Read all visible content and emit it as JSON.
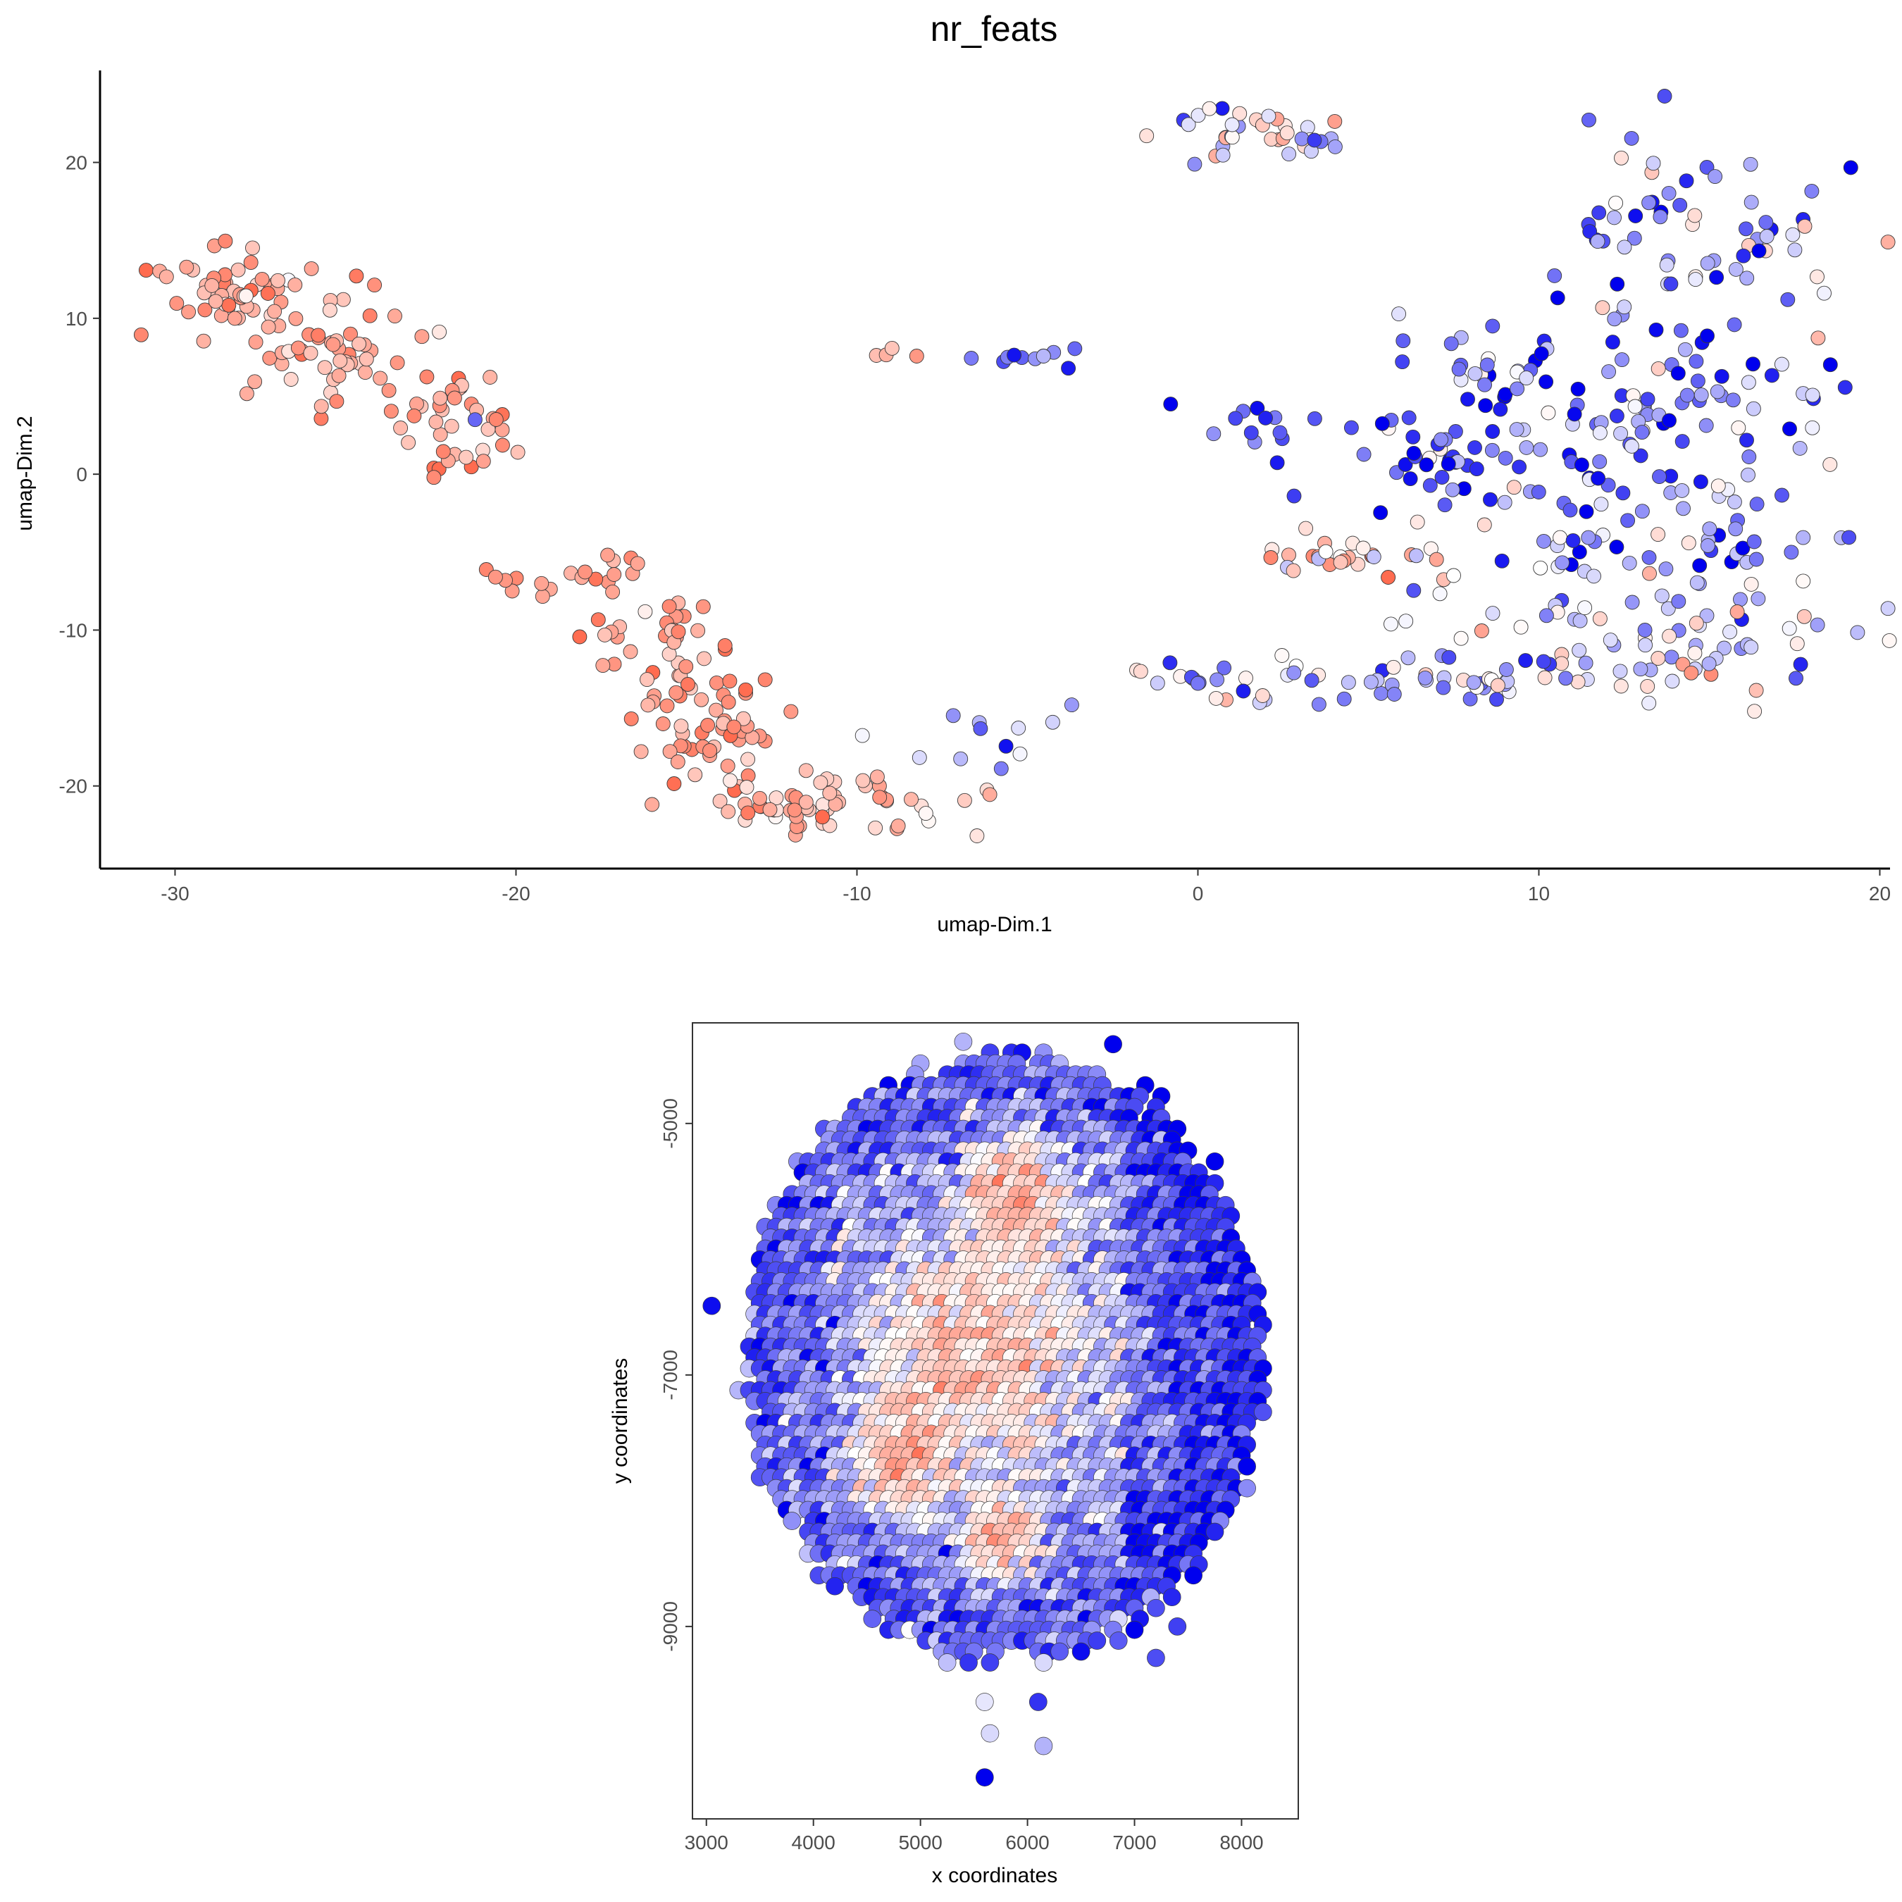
{
  "title": "nr_feats",
  "colors": {
    "low": "#ff6b4f",
    "mid": "#ffffff",
    "high": "#0000ee",
    "stroke": "#3a3a3a"
  },
  "chart_data": [
    {
      "type": "scatter",
      "name_of_panel": "umap",
      "xlabel": "umap-Dim.1",
      "ylabel": "umap-Dim.2",
      "xlim": [
        -32.2,
        20.3
      ],
      "ylim": [
        -25.3,
        25.9
      ],
      "xticks": [
        -30,
        -20,
        -10,
        0,
        10,
        20
      ],
      "yticks": [
        -20,
        -10,
        0,
        10,
        20
      ],
      "xticklabels": [
        "-30",
        "-20",
        "-10",
        "0",
        "10",
        "20"
      ],
      "yticklabels": [
        "-20",
        "-10",
        "0",
        "10",
        "20"
      ],
      "color_scale": "diverging: low = coral red, mid = white, high = blue",
      "clusters": [
        {
          "cx": -28.2,
          "cy": 12.0,
          "sx": 1.4,
          "sy": 1.4,
          "n": 55,
          "v": -0.6,
          "vs": 0.22
        },
        {
          "cx": -25.0,
          "cy": 8.0,
          "sx": 1.5,
          "sy": 1.5,
          "n": 50,
          "v": -0.55,
          "vs": 0.22
        },
        {
          "cx": -22.0,
          "cy": 3.5,
          "sx": 1.2,
          "sy": 1.6,
          "n": 40,
          "v": -0.65,
          "vs": 0.2
        },
        {
          "cx": -18.5,
          "cy": -6.5,
          "sx": 1.0,
          "sy": 0.8,
          "n": 18,
          "v": -0.6,
          "vs": 0.2
        },
        {
          "cx": -16.0,
          "cy": -11.0,
          "sx": 1.0,
          "sy": 1.6,
          "n": 30,
          "v": -0.65,
          "vs": 0.2
        },
        {
          "cx": -14.5,
          "cy": -16.0,
          "sx": 1.2,
          "sy": 2.0,
          "n": 55,
          "v": -0.7,
          "vs": 0.18
        },
        {
          "cx": -12.0,
          "cy": -21.0,
          "sx": 1.3,
          "sy": 1.0,
          "n": 45,
          "v": -0.55,
          "vs": 0.22
        },
        {
          "cx": -8.5,
          "cy": -20.5,
          "sx": 1.5,
          "sy": 1.2,
          "n": 18,
          "v": -0.3,
          "vs": 0.3
        },
        {
          "cx": -6.0,
          "cy": -17.0,
          "sx": 1.2,
          "sy": 1.3,
          "n": 10,
          "v": 0.3,
          "vs": 0.25
        },
        {
          "cx": -9.0,
          "cy": 7.9,
          "sx": 0.3,
          "sy": 0.2,
          "n": 4,
          "v": -0.6,
          "vs": 0.2
        },
        {
          "cx": -5.3,
          "cy": 7.6,
          "sx": 0.8,
          "sy": 0.3,
          "n": 10,
          "v": 0.55,
          "vs": 0.2
        },
        {
          "cx": 1.8,
          "cy": 21.8,
          "sx": 1.5,
          "sy": 0.9,
          "n": 38,
          "v": 0.0,
          "vs": 0.35
        },
        {
          "cx": 2.0,
          "cy": 3.3,
          "sx": 1.2,
          "sy": 0.5,
          "n": 12,
          "v": 0.75,
          "vs": 0.2
        },
        {
          "cx": 4.3,
          "cy": -5.4,
          "sx": 1.3,
          "sy": 0.6,
          "n": 25,
          "v": -0.2,
          "vs": 0.4
        },
        {
          "cx": 0.5,
          "cy": -13.0,
          "sx": 1.5,
          "sy": 1.0,
          "n": 20,
          "v": 0.3,
          "vs": 0.4
        },
        {
          "cx": 7.0,
          "cy": -13.4,
          "sx": 3.0,
          "sy": 0.6,
          "n": 35,
          "v": 0.1,
          "vs": 0.4
        },
        {
          "cx": 14.5,
          "cy": 16.0,
          "sx": 2.5,
          "sy": 2.8,
          "n": 60,
          "v": 0.4,
          "vs": 0.35
        },
        {
          "cx": 12.5,
          "cy": 5.0,
          "sx": 3.8,
          "sy": 3.8,
          "n": 130,
          "v": 0.45,
          "vs": 0.4
        },
        {
          "cx": 7.0,
          "cy": 1.5,
          "sx": 1.2,
          "sy": 1.5,
          "n": 30,
          "v": 0.8,
          "vs": 0.2
        },
        {
          "cx": 13.0,
          "cy": -5.0,
          "sx": 3.5,
          "sy": 2.8,
          "n": 90,
          "v": 0.35,
          "vs": 0.4
        },
        {
          "cx": 13.5,
          "cy": -11.5,
          "sx": 3.0,
          "sy": 1.6,
          "n": 60,
          "v": 0.1,
          "vs": 0.4
        }
      ],
      "points": [
        {
          "x": -0.8,
          "y": 4.5,
          "v": 1.0
        },
        {
          "x": -3.8,
          "y": 6.8,
          "v": 0.9
        },
        {
          "x": -21.2,
          "y": 3.5,
          "v": 0.6
        },
        {
          "x": -20.6,
          "y": -6.6,
          "v": -0.7
        },
        {
          "x": -3.7,
          "y": -14.8,
          "v": 0.4
        },
        {
          "x": 16.3,
          "y": 4.2,
          "v": 0.2
        },
        {
          "x": 17.8,
          "y": 15.9,
          "v": -0.4
        },
        {
          "x": 7.5,
          "y": -6.5,
          "v": 0.0
        }
      ]
    },
    {
      "type": "scatter",
      "name_of_panel": "spatial",
      "xlabel": "x coordinates",
      "ylabel": "y coordinates",
      "xlim": [
        2870,
        8530
      ],
      "ylim": [
        -10530,
        -4200
      ],
      "xticks": [
        3000,
        4000,
        5000,
        6000,
        7000,
        8000
      ],
      "yticks": [
        -5000,
        -7000,
        -9000
      ],
      "xticklabels": [
        "3000",
        "4000",
        "5000",
        "6000",
        "7000",
        "8000"
      ],
      "yticklabels": [
        "-5000",
        "-7000",
        "-9000"
      ],
      "spot_spacing": 100,
      "tissue_center": [
        5800,
        -6850
      ],
      "tissue_radius": 2500,
      "core_regions": [
        {
          "cx": 5900,
          "cy": -5600,
          "r": 700,
          "v": -0.8
        },
        {
          "cx": 4850,
          "cy": -7700,
          "r": 650,
          "v": -0.75
        },
        {
          "cx": 5750,
          "cy": -8300,
          "r": 500,
          "v": -0.75
        },
        {
          "cx": 5400,
          "cy": -6900,
          "r": 1100,
          "v": -0.5
        }
      ],
      "edge_value": 0.6,
      "outliers": [
        {
          "x": 6800,
          "y": -4370,
          "v": 1.0
        },
        {
          "x": 5600,
          "y": -10200,
          "v": 1.0
        },
        {
          "x": 6150,
          "y": -9950,
          "v": 0.3
        },
        {
          "x": 5650,
          "y": -9850,
          "v": 0.15
        },
        {
          "x": 5600,
          "y": -9600,
          "v": 0.1
        },
        {
          "x": 6100,
          "y": -9600,
          "v": 0.8
        },
        {
          "x": 7400,
          "y": -9000,
          "v": 0.75
        },
        {
          "x": 7200,
          "y": -9250,
          "v": 0.7
        },
        {
          "x": 3050,
          "y": -6450,
          "v": 0.95
        }
      ]
    }
  ]
}
